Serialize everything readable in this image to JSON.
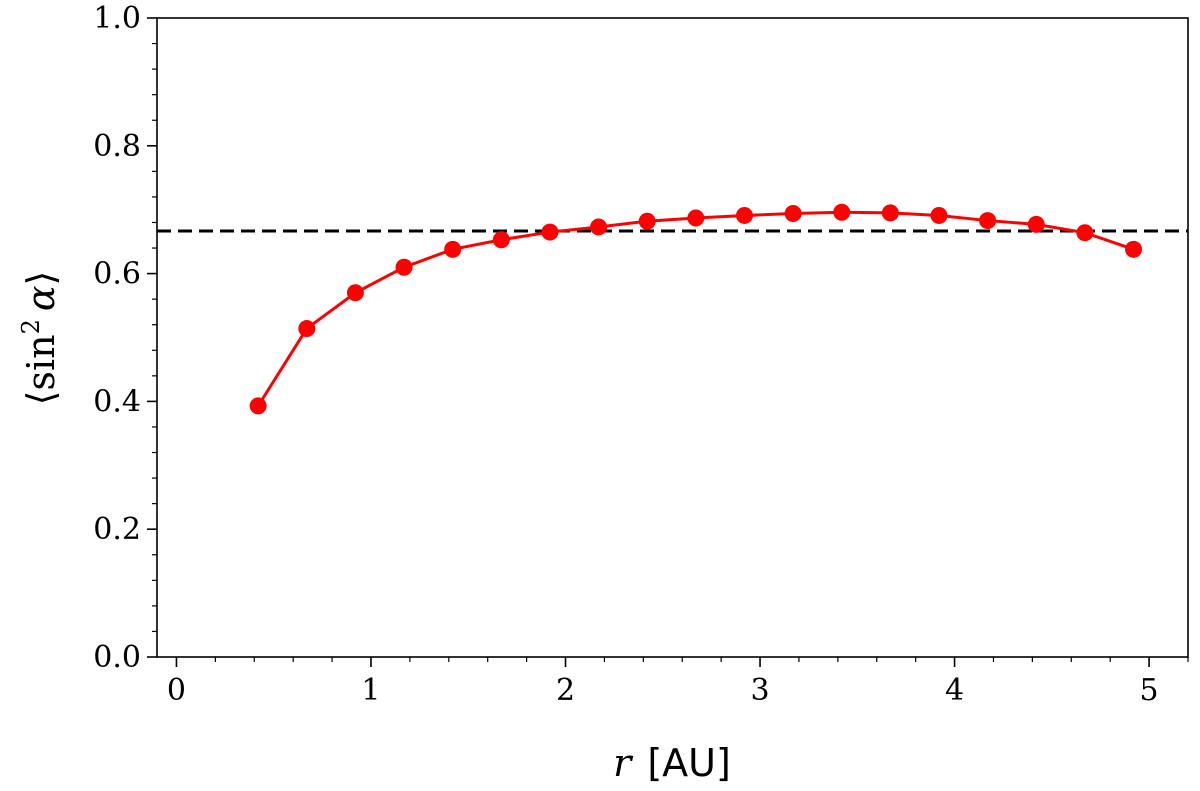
{
  "chart_data": {
    "type": "line",
    "title": "",
    "xlabel_var": "r",
    "xlabel_unit": "[AU]",
    "ylabel_open": "⟨",
    "ylabel_func": "sin",
    "ylabel_exp": "2",
    "ylabel_var": "α",
    "ylabel_close": "⟩",
    "xlim": [
      -0.1,
      5.2
    ],
    "ylim": [
      0.0,
      1.0
    ],
    "xticks": [
      0,
      1,
      2,
      3,
      4,
      5
    ],
    "xtick_labels": [
      "0",
      "1",
      "2",
      "3",
      "4",
      "5"
    ],
    "yticks": [
      0.0,
      0.2,
      0.4,
      0.6,
      0.8,
      1.0
    ],
    "ytick_labels": [
      "0.0",
      "0.2",
      "0.4",
      "0.6",
      "0.8",
      "1.0"
    ],
    "grid": false,
    "series": [
      {
        "color": "#ff0000",
        "marker": "circle",
        "x": [
          0.42,
          0.67,
          0.92,
          1.17,
          1.42,
          1.67,
          1.92,
          2.17,
          2.42,
          2.67,
          2.92,
          3.17,
          3.42,
          3.67,
          3.92,
          4.17,
          4.42,
          4.67,
          4.92
        ],
        "y": [
          0.393,
          0.514,
          0.57,
          0.61,
          0.638,
          0.653,
          0.665,
          0.673,
          0.682,
          0.687,
          0.691,
          0.694,
          0.696,
          0.695,
          0.691,
          0.683,
          0.677,
          0.664,
          0.638
        ]
      }
    ],
    "reference_line": {
      "y": 0.6667,
      "color": "#000000",
      "style": "dashed"
    }
  }
}
